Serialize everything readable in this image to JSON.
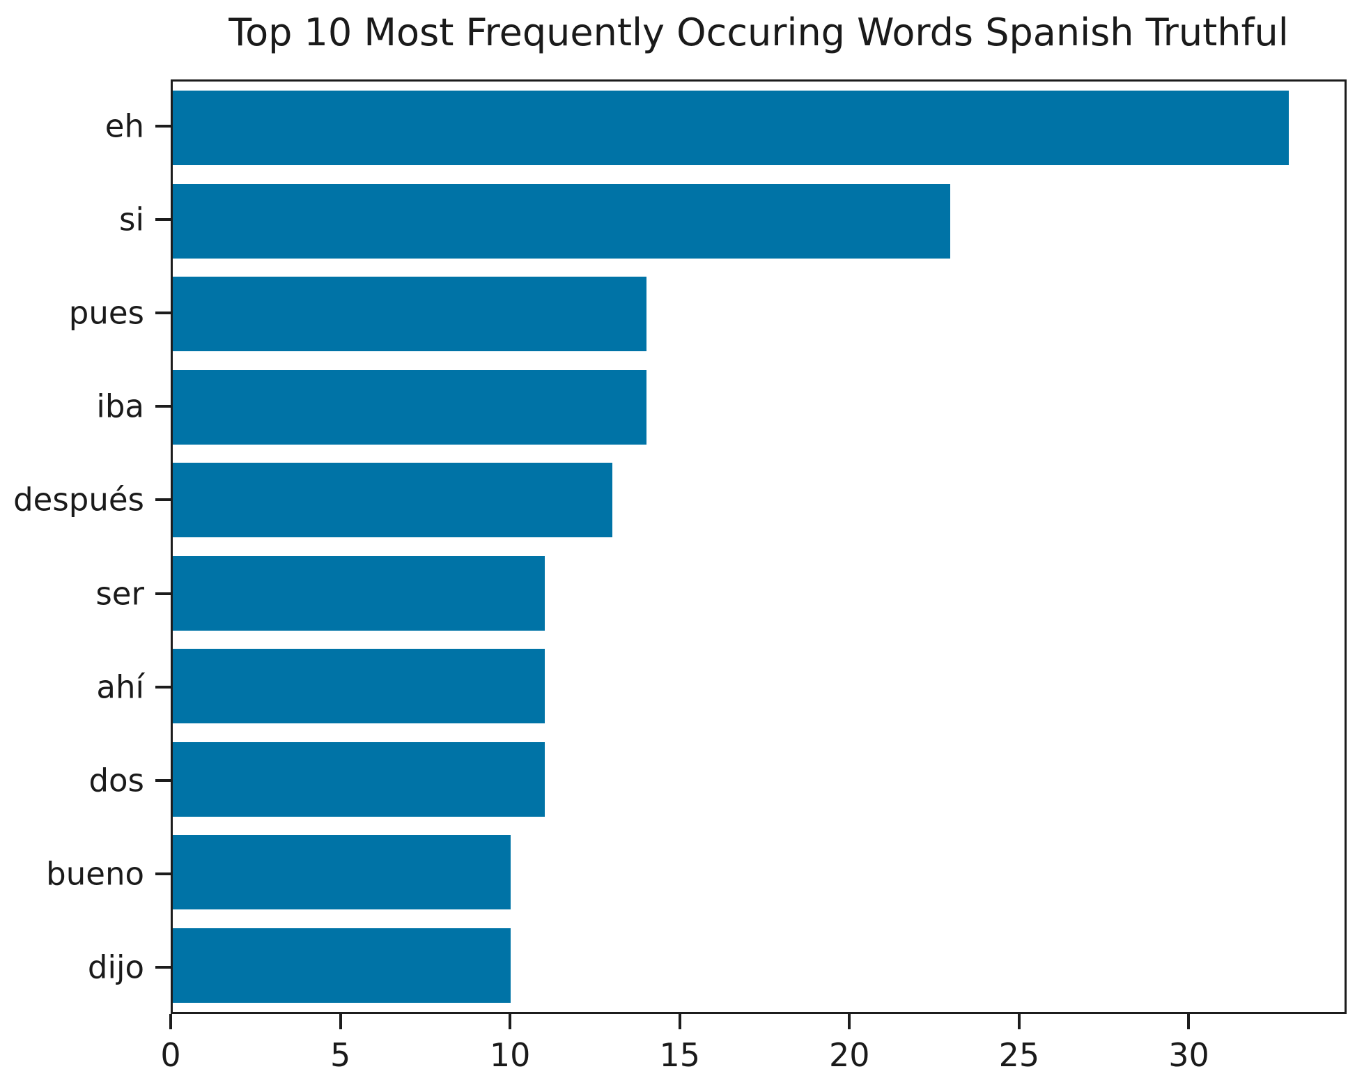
{
  "chart_data": {
    "type": "bar",
    "orientation": "horizontal",
    "title": "Top 10 Most Frequently Occuring Words Spanish Truthful",
    "categories": [
      "eh",
      "si",
      "pues",
      "iba",
      "después",
      "ser",
      "ahí",
      "dos",
      "bueno",
      "dijo"
    ],
    "values": [
      33,
      23,
      14,
      14,
      13,
      11,
      11,
      11,
      10,
      10
    ],
    "xlabel": "",
    "ylabel": "",
    "x_ticks": [
      0,
      5,
      10,
      15,
      20,
      25,
      30
    ],
    "xlim": [
      0,
      34.65
    ],
    "grid": false,
    "legend_position": "none",
    "bar_color": "#0073a6",
    "spine_color": "#1c1c1c",
    "text_color": "#1a1a1a",
    "background_color": "#ffffff"
  }
}
